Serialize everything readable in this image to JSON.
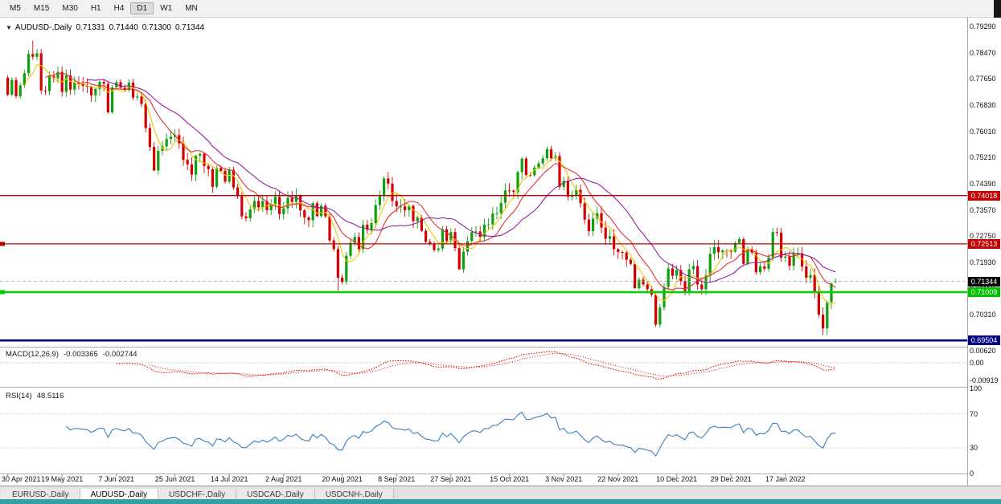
{
  "toolbar": {
    "timeframes": [
      "M5",
      "M15",
      "M30",
      "H1",
      "H4",
      "D1",
      "W1",
      "MN"
    ],
    "active_timeframe": "D1"
  },
  "chart_header": {
    "collapse_icon": "▼",
    "symbol_label": "AUDUSD-,Daily",
    "ohlc": {
      "open": "0.71331",
      "high": "0.71440",
      "low": "0.71300",
      "close": "0.71344"
    }
  },
  "price_axis": {
    "labels": [
      "0.79290",
      "0.78470",
      "0.77650",
      "0.76830",
      "0.76010",
      "0.75210",
      "0.74390",
      "0.73570",
      "0.72750",
      "0.71930",
      "0.71110",
      "0.70310"
    ],
    "badges": [
      {
        "value": "0.74018",
        "price": 0.74018,
        "bg": "#c00000",
        "fg": "#ffffff",
        "name": "resistance-line-1"
      },
      {
        "value": "0.72513",
        "price": 0.72513,
        "bg": "#c00000",
        "fg": "#ffffff",
        "name": "resistance-line-2"
      },
      {
        "value": "0.71344",
        "price": 0.71344,
        "bg": "#000000",
        "fg": "#ffffff",
        "name": "current-price"
      },
      {
        "value": "0.71009",
        "price": 0.71009,
        "bg": "#00c000",
        "fg": "#ffffff",
        "name": "support-line-1"
      },
      {
        "value": "0.69504",
        "price": 0.69504,
        "bg": "#000080",
        "fg": "#ffffff",
        "name": "support-line-2"
      }
    ]
  },
  "macd_panel": {
    "label": "MACD(12,26,9)",
    "main_value": "-0.003365",
    "signal_value": "-0.002744",
    "axis_labels": [
      {
        "text": "0.00620",
        "value": 0.0062
      },
      {
        "text": "0.00",
        "value": 0
      },
      {
        "text": "-0.00919",
        "value": -0.00919
      }
    ]
  },
  "rsi_panel": {
    "label": "RSI(14)",
    "value": "48.5116",
    "levels": [
      70,
      30
    ],
    "axis_labels": [
      {
        "text": "100",
        "value": 100
      },
      {
        "text": "70",
        "value": 70
      },
      {
        "text": "30",
        "value": 30
      },
      {
        "text": "0",
        "value": 0
      }
    ]
  },
  "tabs": [
    {
      "label": "EURUSD-,Daily",
      "active": false
    },
    {
      "label": "AUDUSD-,Daily",
      "active": true
    },
    {
      "label": "USDCHF-,Daily",
      "active": false
    },
    {
      "label": "USDCAD-,Daily",
      "active": false
    },
    {
      "label": "USDCNH-,Daily",
      "active": false
    }
  ],
  "chart_data": {
    "type": "candlestick",
    "symbol": "AUDUSD",
    "timeframe": "Daily",
    "title": "AUDUSD-,Daily",
    "grid": false,
    "current_price": 0.71344,
    "last_candle": {
      "open": 0.71331,
      "high": 0.7144,
      "low": 0.713,
      "close": 0.71344
    },
    "y_axis": {
      "top_price": 0.7956,
      "price_per_pixel": 0.00025,
      "tick_labels": [
        "0.79290",
        "0.78470",
        "0.77650",
        "0.76830",
        "0.76010",
        "0.75210",
        "0.74390",
        "0.73570",
        "0.72750",
        "0.71930",
        "0.71110",
        "0.70310"
      ]
    },
    "x_ticks": [
      {
        "label": "30 Apr 2021",
        "index": 0
      },
      {
        "label": "19 May 2021",
        "index": 13
      },
      {
        "label": "7 Jun 2021",
        "index": 26
      },
      {
        "label": "25 Jun 2021",
        "index": 40
      },
      {
        "label": "14 Jul 2021",
        "index": 53
      },
      {
        "label": "2 Aug 2021",
        "index": 66
      },
      {
        "label": "20 Aug 2021",
        "index": 80
      },
      {
        "label": "8 Sep 2021",
        "index": 93
      },
      {
        "label": "27 Sep 2021",
        "index": 106
      },
      {
        "label": "15 Oct 2021",
        "index": 120
      },
      {
        "label": "3 Nov 2021",
        "index": 133
      },
      {
        "label": "22 Nov 2021",
        "index": 146
      },
      {
        "label": "10 Dec 2021",
        "index": 160
      },
      {
        "label": "29 Dec 2021",
        "index": 173
      },
      {
        "label": "17 Jan 2022",
        "index": 186
      }
    ],
    "closes": [
      0.7716,
      0.7762,
      0.7711,
      0.7745,
      0.7783,
      0.7843,
      0.7834,
      0.7845,
      0.7729,
      0.7727,
      0.7774,
      0.7767,
      0.7787,
      0.7725,
      0.7776,
      0.7732,
      0.7753,
      0.775,
      0.7744,
      0.7741,
      0.7714,
      0.7734,
      0.7756,
      0.775,
      0.7661,
      0.7739,
      0.7755,
      0.7738,
      0.7731,
      0.7754,
      0.7707,
      0.771,
      0.7687,
      0.7612,
      0.7553,
      0.748,
      0.7541,
      0.7555,
      0.7578,
      0.7585,
      0.759,
      0.7565,
      0.7513,
      0.7499,
      0.7467,
      0.7526,
      0.7532,
      0.7494,
      0.7484,
      0.7429,
      0.7488,
      0.7479,
      0.7445,
      0.7482,
      0.7427,
      0.74,
      0.7337,
      0.7331,
      0.7359,
      0.7385,
      0.7365,
      0.7385,
      0.7356,
      0.7373,
      0.7398,
      0.7344,
      0.7362,
      0.7395,
      0.7382,
      0.7402,
      0.7356,
      0.7334,
      0.7325,
      0.7378,
      0.7338,
      0.737,
      0.7337,
      0.7262,
      0.7235,
      0.7146,
      0.7133,
      0.7214,
      0.7255,
      0.7273,
      0.7235,
      0.7311,
      0.7295,
      0.7316,
      0.7372,
      0.74,
      0.7455,
      0.7439,
      0.7385,
      0.7368,
      0.7368,
      0.7356,
      0.737,
      0.7322,
      0.7334,
      0.7292,
      0.7258,
      0.7251,
      0.7232,
      0.7237,
      0.7297,
      0.726,
      0.7288,
      0.7238,
      0.7172,
      0.7227,
      0.726,
      0.7288,
      0.729,
      0.7273,
      0.7311,
      0.7312,
      0.7346,
      0.7347,
      0.7379,
      0.7418,
      0.7417,
      0.7413,
      0.7475,
      0.7517,
      0.7466,
      0.7465,
      0.7489,
      0.7502,
      0.7518,
      0.7546,
      0.7518,
      0.7525,
      0.7429,
      0.7448,
      0.7398,
      0.7402,
      0.742,
      0.7378,
      0.7327,
      0.7291,
      0.733,
      0.7347,
      0.7302,
      0.7267,
      0.7275,
      0.7235,
      0.7226,
      0.7224,
      0.7202,
      0.7189,
      0.7113,
      0.714,
      0.7125,
      0.711,
      0.7093,
      0.7,
      0.7053,
      0.7117,
      0.7175,
      0.7152,
      0.717,
      0.7135,
      0.7104,
      0.7172,
      0.7182,
      0.7125,
      0.711,
      0.7153,
      0.722,
      0.7241,
      0.7225,
      0.7231,
      0.723,
      0.7227,
      0.7254,
      0.7266,
      0.7189,
      0.7235,
      0.7224,
      0.7163,
      0.7181,
      0.7174,
      0.7209,
      0.7288,
      0.7286,
      0.7208,
      0.7212,
      0.7183,
      0.7222,
      0.7222,
      0.7181,
      0.7146,
      0.7154,
      0.71,
      0.7031,
      0.6988,
      0.707,
      0.7128,
      0.71344
    ],
    "overrides": {
      "0": {
        "open": 0.7769
      },
      "6": {
        "high": 0.7885
      },
      "33": {
        "low": 0.7598
      },
      "35": {
        "low": 0.7478
      },
      "49": {
        "low": 0.741
      },
      "79": {
        "low": 0.7106
      },
      "90": {
        "high": 0.7462
      },
      "108": {
        "low": 0.717
      },
      "129": {
        "high": 0.7555
      },
      "150": {
        "low": 0.7112
      },
      "155": {
        "low": 0.6993
      },
      "194": {
        "low": 0.7022
      },
      "195": {
        "low": 0.6967
      },
      "198": {
        "open": 0.71331,
        "high": 0.7144,
        "low": 0.713
      }
    },
    "candle_colors": {
      "bull": "#0fa00f",
      "bear": "#d40000"
    },
    "levels": [
      {
        "price": 0.74018,
        "color": "#c00000",
        "width": 1.3,
        "handle": false
      },
      {
        "price": 0.72513,
        "color": "#c00000",
        "width": 1.3,
        "handle": true
      },
      {
        "price": 0.71009,
        "color": "#00d200",
        "width": 2.4,
        "handle": true
      },
      {
        "price": 0.69504,
        "color": "#000080",
        "width": 2.6,
        "handle": false
      }
    ],
    "indicators": {
      "moving_averages": [
        {
          "type": "sma",
          "period": 5,
          "color": "#eec900"
        },
        {
          "type": "sma",
          "period": 10,
          "color": "#e83030"
        },
        {
          "type": "sma",
          "period": 20,
          "color": "#9420a0"
        }
      ],
      "macd": {
        "fast": 12,
        "slow": 26,
        "signal": 9,
        "main": -0.003365,
        "signal_val": -0.002744,
        "color": "#e00000"
      },
      "rsi": {
        "period": 14,
        "value": 48.5116,
        "color": "#3a7ebf"
      }
    }
  }
}
